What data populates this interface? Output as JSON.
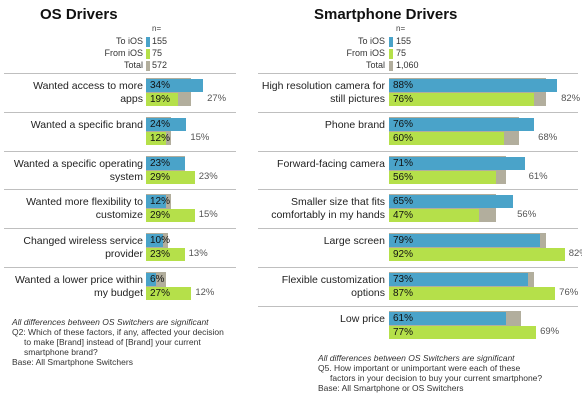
{
  "chart_data": [
    {
      "type": "bar",
      "title": "OS Drivers",
      "legend": [
        {
          "name": "To iOS",
          "n": "155",
          "color": "#4aa3c9"
        },
        {
          "name": "From iOS",
          "n": "75",
          "color": "#b5e04a"
        },
        {
          "name": "Total",
          "n": "572",
          "color": "#b2ae9d"
        }
      ],
      "n_header": "n=",
      "categories": [
        "Wanted access to more apps",
        "Wanted a specific brand",
        "Wanted a specific operating system",
        "Wanted more flexibility to customize",
        "Changed wireless service provider",
        "Wanted a lower price within my budget"
      ],
      "series": [
        {
          "name": "To iOS",
          "values": [
            34,
            24,
            23,
            12,
            10,
            6
          ]
        },
        {
          "name": "From iOS",
          "values": [
            19,
            12,
            29,
            29,
            23,
            27
          ]
        },
        {
          "name": "Total",
          "values": [
            27,
            15,
            23,
            15,
            13,
            12
          ]
        }
      ],
      "value_suffix": "%",
      "footnotes": [
        "All differences between OS Switchers are significant",
        "Q2: Which of these factors, if any, affected your decision",
        "to make [Brand] instead of [Brand] your current",
        "smartphone brand?",
        "Base: All Smartphone Switchers"
      ]
    },
    {
      "type": "bar",
      "title": "Smartphone Drivers",
      "legend": [
        {
          "name": "To iOS",
          "n": "155",
          "color": "#4aa3c9"
        },
        {
          "name": "From iOS",
          "n": "75",
          "color": "#b5e04a"
        },
        {
          "name": "Total",
          "n": "1,060",
          "color": "#b2ae9d"
        }
      ],
      "n_header": "n=",
      "categories": [
        "High resolution camera for still pictures",
        "Phone brand",
        "Forward-facing camera",
        "Smaller size that fits comfortably in my hands",
        "Large screen",
        "Flexible customization options",
        "Low price"
      ],
      "series": [
        {
          "name": "To iOS",
          "values": [
            88,
            76,
            71,
            65,
            79,
            73,
            61
          ]
        },
        {
          "name": "From iOS",
          "values": [
            76,
            60,
            56,
            47,
            92,
            87,
            77
          ]
        },
        {
          "name": "Total",
          "values": [
            82,
            68,
            61,
            56,
            82,
            76,
            69
          ]
        }
      ],
      "value_suffix": "%",
      "footnotes": [
        "All differences between OS Switchers are significant",
        "Q5. How important or unimportant were each of these",
        "factors in your decision to buy your current smartphone?",
        "Base: All Smartphone or OS Switchers"
      ]
    }
  ]
}
